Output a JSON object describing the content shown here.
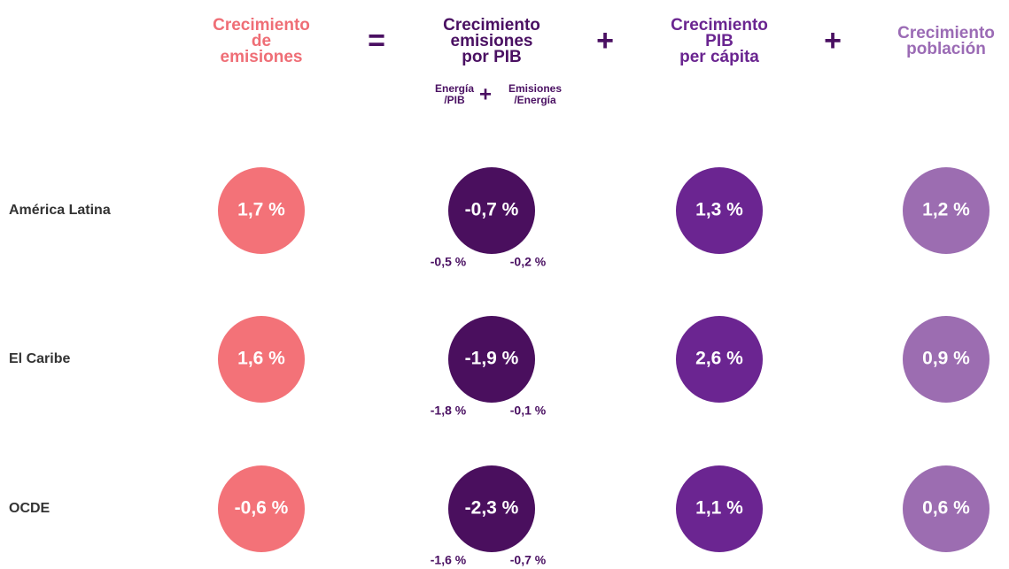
{
  "headers": [
    {
      "lines": [
        "Crecimiento",
        "de",
        "emisiones"
      ]
    },
    {
      "lines": [
        "Crecimiento",
        "emisiones",
        "por PIB"
      ]
    },
    {
      "lines": [
        "Crecimiento",
        "PIB",
        "per cápita"
      ]
    },
    {
      "lines": [
        "Crecimiento",
        "población"
      ]
    }
  ],
  "operators": [
    "=",
    "+",
    "+"
  ],
  "sub_header": {
    "left": [
      "Energía",
      "/PIB"
    ],
    "operator": "+",
    "right": [
      "Emisiones",
      "/Energía"
    ]
  },
  "rows": [
    {
      "label": "América Latina",
      "values": [
        "1,7 %",
        "-0,7 %",
        "1,3 %",
        "1,2 %"
      ],
      "components": [
        "-0,5 %",
        "-0,2 %"
      ]
    },
    {
      "label": "El Caribe",
      "values": [
        "1,6 %",
        "-1,9 %",
        "2,6 %",
        "0,9 %"
      ],
      "components": [
        "-1,8 %",
        "-0,1 %"
      ]
    },
    {
      "label": "OCDE",
      "values": [
        "-0,6 %",
        "-2,3 %",
        "1,1 %",
        "0,6 %"
      ],
      "components": [
        "-1,6 %",
        "-0,7 %"
      ]
    }
  ]
}
